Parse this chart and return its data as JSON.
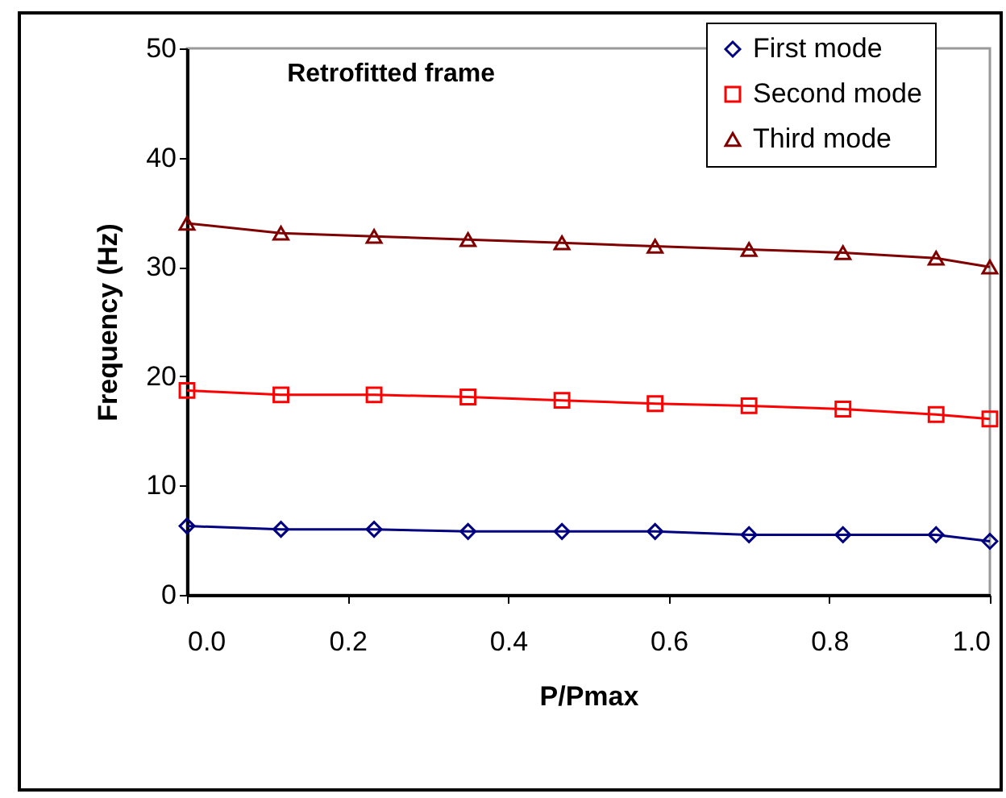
{
  "chart_data": {
    "type": "line",
    "title": "Retrofitted frame",
    "xlabel": "P/Pmax",
    "ylabel": "Frequency (Hz)",
    "x": [
      0,
      0.117,
      0.233,
      0.35,
      0.467,
      0.583,
      0.7,
      0.817,
      0.933,
      1.0
    ],
    "series": [
      {
        "name": "First mode",
        "color": "#000080",
        "marker": "diamond",
        "values": [
          6.3,
          6.0,
          6.0,
          5.8,
          5.8,
          5.8,
          5.5,
          5.5,
          5.5,
          4.9
        ]
      },
      {
        "name": "Second mode",
        "color": "#ff0000",
        "marker": "square",
        "values": [
          18.7,
          18.3,
          18.3,
          18.1,
          17.8,
          17.5,
          17.3,
          17.0,
          16.5,
          16.1
        ]
      },
      {
        "name": "Third mode",
        "color": "#800000",
        "marker": "triangle",
        "values": [
          34.0,
          33.1,
          32.8,
          32.5,
          32.2,
          31.9,
          31.6,
          31.3,
          30.8,
          30.0
        ]
      }
    ],
    "xlim": [
      0,
      1
    ],
    "xticks": [
      {
        "value": 0,
        "label": "0.0"
      },
      {
        "value": 0.2,
        "label": "0.2"
      },
      {
        "value": 0.4,
        "label": "0.4"
      },
      {
        "value": 0.6,
        "label": "0.6"
      },
      {
        "value": 0.8,
        "label": "0.8"
      },
      {
        "value": 1,
        "label": "1.0"
      }
    ],
    "ylim": [
      0,
      50
    ],
    "yticks": [
      0,
      10,
      20,
      30,
      40,
      50
    ],
    "grid": false,
    "legend": "top right",
    "line_style": "solid"
  }
}
